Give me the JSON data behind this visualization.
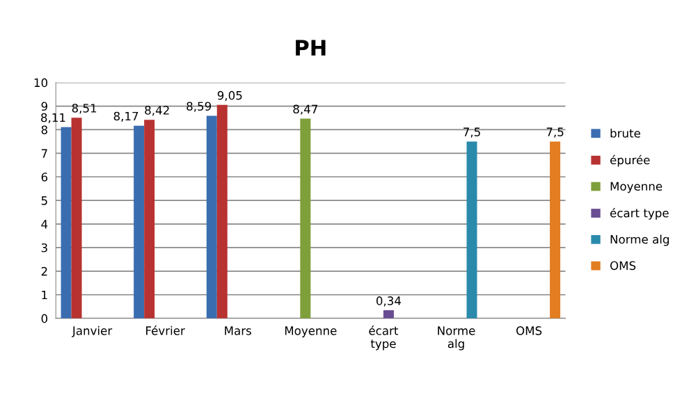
{
  "chart_data": {
    "type": "bar",
    "title": "PH",
    "categories": [
      "Janvier",
      "Février",
      "Mars",
      "Moyenne",
      "écart\ntype",
      "Norme\nalg",
      "OMS"
    ],
    "series": [
      {
        "name": "brute",
        "color": "#3a6db0",
        "values": [
          8.11,
          8.17,
          8.59,
          null,
          null,
          null,
          null
        ],
        "value_labels": [
          "8,11",
          "8,17",
          "8,59",
          null,
          null,
          null,
          null
        ]
      },
      {
        "name": "épurée",
        "color": "#b83232",
        "values": [
          8.51,
          8.42,
          9.05,
          null,
          null,
          null,
          null
        ],
        "value_labels": [
          "8,51",
          "8,42",
          "9,05",
          null,
          null,
          null,
          null
        ]
      },
      {
        "name": "Moyenne",
        "color": "#7f9f3a",
        "values": [
          null,
          null,
          null,
          8.47,
          null,
          null,
          null
        ],
        "value_labels": [
          null,
          null,
          null,
          "8,47",
          null,
          null,
          null
        ]
      },
      {
        "name": "écart type",
        "color": "#6a4c93",
        "values": [
          null,
          null,
          null,
          null,
          0.34,
          null,
          null
        ],
        "value_labels": [
          null,
          null,
          null,
          null,
          "0,34",
          null,
          null
        ]
      },
      {
        "name": "Norme alg",
        "color": "#2a8aab",
        "values": [
          null,
          null,
          null,
          null,
          null,
          7.5,
          null
        ],
        "value_labels": [
          null,
          null,
          null,
          null,
          null,
          "7,5",
          null
        ]
      },
      {
        "name": "OMS",
        "color": "#e27d22",
        "values": [
          null,
          null,
          null,
          null,
          null,
          null,
          7.5
        ],
        "value_labels": [
          null,
          null,
          null,
          null,
          null,
          null,
          "7,5"
        ]
      }
    ],
    "ylim": [
      0,
      10
    ],
    "yticks": [
      0,
      1,
      2,
      3,
      4,
      5,
      6,
      7,
      8,
      9,
      10
    ],
    "grid": "y",
    "legend": "right"
  }
}
